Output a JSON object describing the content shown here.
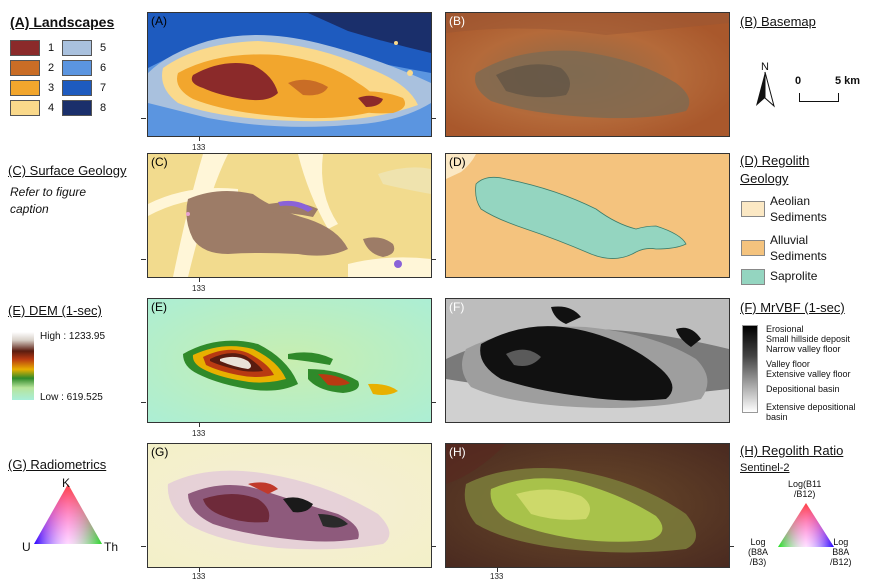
{
  "colors": {
    "landscape": [
      "#8b2a2a",
      "#c96d26",
      "#f2a62d",
      "#fad98b",
      "#a9c1de",
      "#5b95e0",
      "#1e5bbf",
      "#1a2f6b"
    ],
    "regolith_aeolian": "#fbe8c4",
    "regolith_alluvial": "#f4c37e",
    "regolith_saprolite": "#94d5c0"
  },
  "left_titles": {
    "a": "(A) Landscapes",
    "c": "(C) Surface Geology",
    "e": "(E) DEM (1-sec)",
    "g": "(G) Radiometrics"
  },
  "right_titles": {
    "b": "(B) Basemap",
    "d": "(D) Regolith",
    "d2": "Geology",
    "f": "(F)  MrVBF (1-sec)",
    "h": "(H) Regolith Ratio",
    "h_sub": "Sentinel-2"
  },
  "panel_labels": {
    "a": "(A)",
    "b": "(B)",
    "c": "(C)",
    "d": "(D)",
    "e": "(E)",
    "f": "(F)",
    "g": "(G)",
    "h": "(H)"
  },
  "tick_label": "133",
  "landscape_legend": [
    "1",
    "2",
    "3",
    "4",
    "5",
    "6",
    "7",
    "8"
  ],
  "refer_note": "Refer to figure caption",
  "north": "N",
  "scale": {
    "zero": "0",
    "five": "5 km"
  },
  "regolith_legend": {
    "aeolian_1": "Aeolian",
    "aeolian_2": "Sediments",
    "alluvial_1": "Alluvial",
    "alluvial_2": "Sediments",
    "saprolite": "Saprolite"
  },
  "dem_legend": {
    "high": "High : 1233.95",
    "low": "Low : 619.525"
  },
  "mrvbf_legend": [
    "Erosional",
    "Small hillside deposit",
    "Narrow valley floor",
    "Valley floor",
    "Extensive valley floor",
    "Depositional basin",
    "Extensive depositional",
    "basin"
  ],
  "radiometrics": {
    "k": "K",
    "u": "U",
    "th": "Th"
  },
  "ratio": {
    "top_1": "Log(B11",
    "top_2": "/B12)",
    "left_1": "Log",
    "left_2": "(B8A",
    "left_3": "/B3)",
    "right_1": "Log",
    "right_2": "B8A",
    "right_3": "/B12)"
  }
}
